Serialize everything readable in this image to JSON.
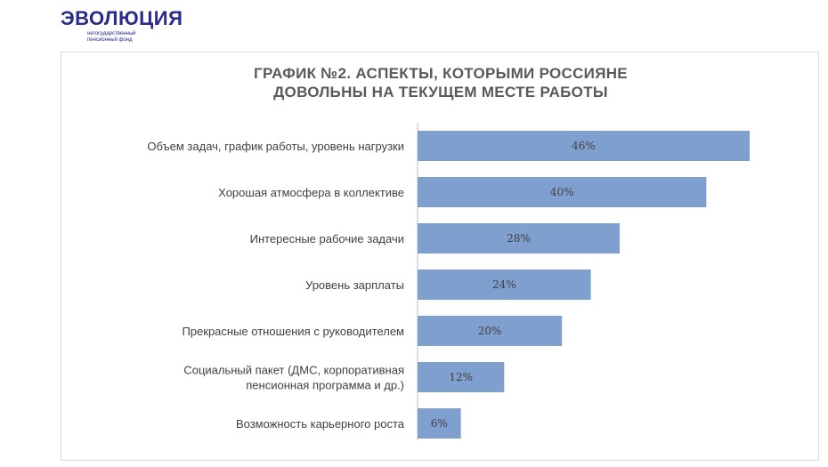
{
  "logo": {
    "word": "ЭВОЛЮЦИЯ",
    "subtitle": "негосударственный пенсионный фонд"
  },
  "chart_data": {
    "type": "bar",
    "orientation": "horizontal",
    "title": "ГРАФИК №2. АСПЕКТЫ, КОТОРЫМИ РОССИЯНЕ ДОВОЛЬНЫ НА ТЕКУЩЕМ МЕСТЕ РАБОТЫ",
    "title_lines": [
      "ГРАФИК №2. АСПЕКТЫ, КОТОРЫМИ РОССИЯНЕ",
      "ДОВОЛЬНЫ НА ТЕКУЩЕМ МЕСТЕ РАБОТЫ"
    ],
    "categories": [
      [
        "Объем задач, график работы, уровень нагрузки"
      ],
      [
        "Хорошая атмосфера в коллективе"
      ],
      [
        "Интересные рабочие задачи"
      ],
      [
        "Уровень зарплаты"
      ],
      [
        "Прекрасные отношения с руководителем"
      ],
      [
        "Социальный пакет (ДМС, корпоративная",
        "пенсионная программа и др.)"
      ],
      [
        "Возможность карьерного роста"
      ]
    ],
    "values": [
      46,
      40,
      28,
      24,
      20,
      12,
      6
    ],
    "value_labels": [
      "46%",
      "40%",
      "28%",
      "24%",
      "20%",
      "12%",
      "6%"
    ],
    "unit": "%",
    "xlim": [
      0,
      50
    ],
    "bar_color": "#7f9fcf",
    "grid": false,
    "legend": "none"
  }
}
